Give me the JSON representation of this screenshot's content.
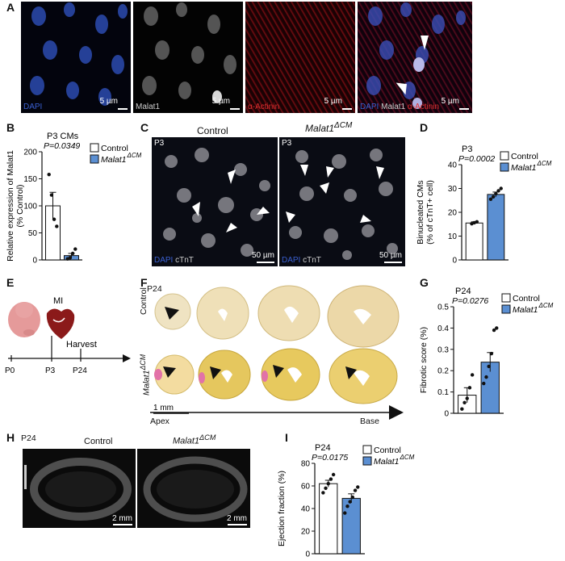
{
  "panel_letters": [
    "A",
    "B",
    "C",
    "D",
    "E",
    "F",
    "G",
    "H",
    "I"
  ],
  "colors": {
    "dapi": "#3a5fd0",
    "malat1": "#d8d8d8",
    "actinin": "#d02020",
    "control_fill": "#ffffff",
    "ko_fill": "#5b8fd2",
    "scale": "#ffffff"
  },
  "panelA": {
    "tiles": [
      {
        "name": "DAPI",
        "scale": "5 µm"
      },
      {
        "name": "Malat1",
        "scale": "5 µm"
      },
      {
        "name": "α-Actinin",
        "scale": "5 µm"
      },
      {
        "name": "merge",
        "scale": "5 µm"
      }
    ],
    "merge_labels": {
      "dapi": "DAPI",
      "malat1": "Malat1",
      "actinin": "α-Actinin"
    }
  },
  "panelC": {
    "col_control": "Control",
    "col_ko": "Malat1",
    "col_ko_sup": "ΔCM",
    "age": "P3",
    "stain_dapi": "DAPI",
    "stain_ctnt": "cTnT",
    "scale": "50 µm"
  },
  "panelE": {
    "mi": "MI",
    "harvest": "Harvest",
    "ticks": [
      "P0",
      "P3",
      "P24"
    ]
  },
  "panelF": {
    "age": "P24",
    "row_control": "Control",
    "row_ko": "Malat1",
    "row_ko_sup": "ΔCM",
    "scale": "1 mm",
    "apex": "Apex",
    "base": "Base"
  },
  "panelH": {
    "age": "P24",
    "control": "Control",
    "ko": "Malat1",
    "ko_sup": "ΔCM",
    "scale": "2 mm"
  },
  "chart_data": [
    {
      "id": "B",
      "type": "bar",
      "title": "P3 CMs",
      "pvalue": "P=0.0349",
      "ylabel": "Relative expression of Malat1 (% Control)",
      "ylim": [
        0,
        200
      ],
      "yticks": [
        0,
        50,
        100,
        150,
        200
      ],
      "legend": [
        "Control",
        "Malat1"
      ],
      "legend_sup": "ΔCM",
      "series": [
        {
          "name": "Control",
          "mean": 100,
          "sem": 25,
          "points": [
            158,
            120,
            75,
            62
          ]
        },
        {
          "name": "Malat1",
          "mean": 8,
          "sem": 4,
          "points": [
            2,
            4,
            12,
            20
          ]
        }
      ]
    },
    {
      "id": "D",
      "type": "bar",
      "title": "P3",
      "pvalue": "P=0.0002",
      "ylabel": "Binucleated CMs (% of cTnT+ cell)",
      "ylim": [
        0,
        40
      ],
      "yticks": [
        0,
        10,
        20,
        30,
        40
      ],
      "legend": [
        "Control",
        "Malat1"
      ],
      "legend_sup": "ΔCM",
      "series": [
        {
          "name": "Control",
          "mean": 15.5,
          "sem": 0.5,
          "points": [
            15.2,
            15.6,
            16.0
          ]
        },
        {
          "name": "Malat1",
          "mean": 27.5,
          "sem": 1.0,
          "points": [
            25.5,
            26.5,
            27.8,
            29.0,
            30.0
          ]
        }
      ]
    },
    {
      "id": "G",
      "type": "bar",
      "title": "P24",
      "pvalue": "P=0.0276",
      "ylabel": "Fibrotic score (%)",
      "ylim": [
        0,
        0.5
      ],
      "yticks": [
        0,
        0.1,
        0.2,
        0.3,
        0.4,
        0.5
      ],
      "legend": [
        "Control",
        "Malat1"
      ],
      "legend_sup": "ΔCM",
      "series": [
        {
          "name": "Control",
          "mean": 0.085,
          "sem": 0.035,
          "points": [
            0.02,
            0.05,
            0.07,
            0.12,
            0.18
          ]
        },
        {
          "name": "Malat1",
          "mean": 0.24,
          "sem": 0.045,
          "points": [
            0.14,
            0.17,
            0.22,
            0.28,
            0.39,
            0.4
          ]
        }
      ]
    },
    {
      "id": "I",
      "type": "bar",
      "title": "P24",
      "pvalue": "P=0.0175",
      "ylabel": "Ejection fraction (%)",
      "ylim": [
        0,
        80
      ],
      "yticks": [
        0,
        20,
        40,
        60,
        80
      ],
      "legend": [
        "Control",
        "Malat1"
      ],
      "legend_sup": "ΔCM",
      "series": [
        {
          "name": "Control",
          "mean": 62,
          "sem": 3,
          "points": [
            54,
            58,
            62,
            66,
            70
          ]
        },
        {
          "name": "Malat1",
          "mean": 49,
          "sem": 4,
          "points": [
            36,
            42,
            46,
            50,
            56,
            59
          ]
        }
      ]
    }
  ]
}
